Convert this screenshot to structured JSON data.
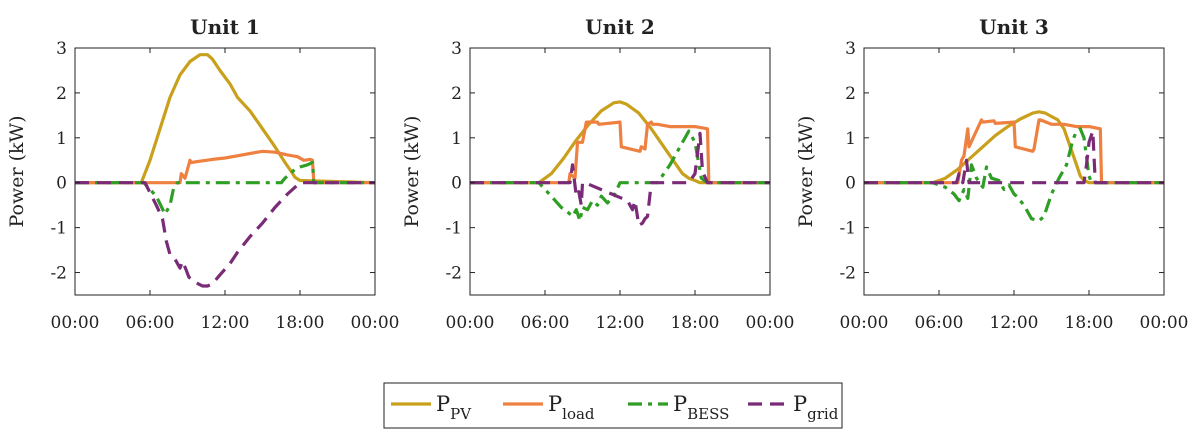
{
  "chart_data": [
    {
      "type": "line",
      "title": "Unit 1",
      "xlabel": "",
      "ylabel": "Power (kW)",
      "x_ticks": [
        "00:00",
        "06:00",
        "12:00",
        "18:00",
        "00:00"
      ],
      "y_ticks": [
        "3",
        "2",
        "1",
        "0",
        "-1",
        "-2"
      ],
      "xlim": [
        0,
        24
      ],
      "ylim": [
        -2.5,
        3
      ],
      "series": [
        {
          "key": "pv",
          "x": [
            0,
            5.3,
            6.0,
            6.8,
            7.6,
            8.4,
            9.2,
            10.0,
            10.6,
            11.0,
            11.6,
            12.4,
            13.0,
            14.0,
            15.0,
            16.0,
            16.8,
            17.3,
            17.6,
            18.0,
            24
          ],
          "values": [
            0,
            0,
            0.5,
            1.2,
            1.9,
            2.4,
            2.7,
            2.85,
            2.85,
            2.75,
            2.5,
            2.2,
            1.9,
            1.6,
            1.2,
            0.8,
            0.45,
            0.25,
            0.12,
            0.05,
            0
          ]
        },
        {
          "key": "load",
          "x": [
            0,
            8.4,
            8.5,
            8.8,
            9.0,
            9.2,
            9.3,
            10,
            11,
            12,
            13,
            14,
            15,
            16,
            17,
            17.8,
            18.3,
            18.8,
            19.0,
            19.1,
            24
          ],
          "values": [
            0,
            0,
            0.2,
            0.1,
            0.3,
            0.5,
            0.45,
            0.48,
            0.52,
            0.55,
            0.6,
            0.65,
            0.7,
            0.68,
            0.62,
            0.58,
            0.5,
            0.52,
            0.5,
            0,
            0
          ]
        },
        {
          "key": "bess",
          "x": [
            0,
            5.5,
            6.5,
            7.2,
            7.6,
            7.9,
            8.2,
            16.5,
            16.8,
            17.2,
            17.6,
            18.0,
            18.6,
            19.0,
            19.1,
            24
          ],
          "values": [
            0,
            0,
            -0.3,
            -0.7,
            -0.5,
            -0.1,
            0,
            0,
            0.1,
            0.2,
            0.3,
            0.35,
            0.4,
            0.45,
            0,
            0
          ]
        },
        {
          "key": "grid",
          "x": [
            0,
            5.6,
            6.5,
            7.0,
            7.3,
            7.6,
            8.0,
            8.4,
            8.6,
            8.9,
            9.1,
            9.5,
            10.2,
            10.6,
            11.0,
            11.6,
            12.4,
            13.0,
            14.0,
            15.0,
            16.0,
            17.0,
            18.0,
            24
          ],
          "values": [
            0,
            0,
            -0.5,
            -0.8,
            -1.3,
            -1.6,
            -1.7,
            -1.9,
            -1.75,
            -1.95,
            -2.1,
            -2.2,
            -2.3,
            -2.3,
            -2.25,
            -2.05,
            -1.8,
            -1.55,
            -1.2,
            -0.9,
            -0.55,
            -0.25,
            0,
            0
          ]
        }
      ]
    },
    {
      "type": "line",
      "title": "Unit 2",
      "xlabel": "",
      "ylabel": "Power (kW)",
      "x_ticks": [
        "00:00",
        "06:00",
        "12:00",
        "18:00",
        "00:00"
      ],
      "y_ticks": [
        "3",
        "2",
        "1",
        "0",
        "-1",
        "-2"
      ],
      "xlim": [
        0,
        24
      ],
      "ylim": [
        -2.5,
        3
      ],
      "series": [
        {
          "key": "pv",
          "x": [
            0,
            5.5,
            6.5,
            7.5,
            8.5,
            9.5,
            10.5,
            11.5,
            12.0,
            12.5,
            13.5,
            14.5,
            15.5,
            16.5,
            17.0,
            17.5,
            18.0,
            18.4,
            24
          ],
          "values": [
            0,
            0,
            0.2,
            0.55,
            0.95,
            1.3,
            1.6,
            1.78,
            1.8,
            1.75,
            1.55,
            1.2,
            0.8,
            0.4,
            0.2,
            0.1,
            0.05,
            0,
            0
          ]
        },
        {
          "key": "load",
          "x": [
            0,
            7.9,
            8.0,
            8.4,
            8.6,
            9.0,
            9.3,
            10.2,
            10.3,
            12.0,
            12.1,
            13.6,
            13.7,
            14.0,
            14.2,
            14.5,
            14.6,
            15.0,
            16.0,
            17.0,
            18.0,
            19.0,
            19.1,
            24
          ],
          "values": [
            0,
            0,
            0.2,
            0.1,
            0.9,
            0.9,
            1.35,
            1.35,
            1.3,
            1.35,
            0.8,
            0.7,
            0.8,
            0.75,
            1.3,
            1.35,
            1.3,
            1.3,
            1.25,
            1.25,
            1.25,
            1.2,
            0,
            0
          ]
        },
        {
          "key": "bess",
          "x": [
            0,
            5.5,
            6.5,
            7.3,
            7.8,
            8.2,
            8.5,
            8.8,
            9.0,
            9.4,
            9.8,
            10.2,
            10.5,
            11.0,
            11.5,
            12.0,
            12.4,
            13.5,
            14.5,
            15.0,
            16.0,
            16.8,
            17.5,
            18.0,
            18.5,
            19.0,
            24
          ],
          "values": [
            0,
            0,
            -0.3,
            -0.55,
            -0.65,
            -0.75,
            -0.6,
            -0.85,
            -0.55,
            -0.6,
            -0.4,
            -0.5,
            -0.3,
            -0.45,
            -0.3,
            0,
            0,
            0,
            0,
            0,
            0.4,
            0.8,
            1.15,
            0.9,
            0.1,
            0,
            0
          ]
        },
        {
          "key": "grid",
          "x": [
            0,
            7.9,
            8.0,
            8.2,
            8.5,
            8.7,
            8.9,
            9.0,
            9.2,
            12.6,
            13.0,
            13.2,
            13.5,
            13.8,
            14.0,
            14.2,
            14.5,
            15.0,
            17.5,
            18.0,
            18.4,
            18.6,
            19.0,
            24
          ],
          "values": [
            0,
            0,
            0,
            0.4,
            -0.3,
            -0.2,
            -0.5,
            0,
            0,
            -0.4,
            -0.6,
            -0.4,
            -0.95,
            -0.9,
            -0.8,
            -0.75,
            0,
            0,
            0,
            0.2,
            1.1,
            0.25,
            0,
            0
          ]
        }
      ]
    },
    {
      "type": "line",
      "title": "Unit 3",
      "xlabel": "",
      "ylabel": "Power (kW)",
      "x_ticks": [
        "00:00",
        "06:00",
        "12:00",
        "18:00",
        "00:00"
      ],
      "y_ticks": [
        "3",
        "2",
        "1",
        "0",
        "-1",
        "-2"
      ],
      "xlim": [
        0,
        24
      ],
      "ylim": [
        -2.5,
        3
      ],
      "series": [
        {
          "key": "pv",
          "x": [
            0,
            5.5,
            6.5,
            7.5,
            8.5,
            9.5,
            10.5,
            11.5,
            12.5,
            13.5,
            14.0,
            14.5,
            15.5,
            16.0,
            16.5,
            17.0,
            17.3,
            17.6,
            18.0,
            24
          ],
          "values": [
            0,
            0,
            0.1,
            0.3,
            0.55,
            0.8,
            1.05,
            1.25,
            1.42,
            1.55,
            1.58,
            1.55,
            1.4,
            1.2,
            0.8,
            0.4,
            0.15,
            0.05,
            0,
            0
          ]
        },
        {
          "key": "load",
          "x": [
            0,
            7.5,
            7.8,
            8.0,
            8.3,
            8.4,
            9.4,
            9.5,
            10.4,
            10.5,
            12.0,
            12.1,
            13.5,
            13.6,
            14.0,
            14.1,
            15.0,
            16.0,
            17.0,
            18.0,
            18.9,
            19.0,
            24
          ],
          "values": [
            0,
            0,
            0.5,
            0.6,
            1.2,
            0.8,
            1.4,
            1.35,
            1.38,
            1.32,
            1.35,
            0.8,
            0.7,
            0.75,
            1.4,
            1.4,
            1.3,
            1.3,
            1.25,
            1.25,
            1.2,
            0,
            0
          ]
        },
        {
          "key": "bess",
          "x": [
            0,
            5.5,
            6.5,
            7.2,
            7.6,
            8.0,
            8.3,
            8.6,
            9.0,
            9.5,
            9.8,
            10.2,
            10.8,
            11.2,
            11.6,
            12.0,
            12.2,
            12.8,
            13.4,
            14.0,
            14.4,
            15.0,
            15.6,
            16.2,
            16.7,
            17.0,
            17.3,
            17.6,
            18.0,
            18.2,
            24
          ],
          "values": [
            0,
            0,
            -0.1,
            -0.25,
            -0.4,
            -0.15,
            -0.35,
            0.4,
            0.1,
            -0.1,
            0.35,
            0.1,
            0.05,
            -0.15,
            -0.05,
            -0.25,
            -0.3,
            -0.5,
            -0.8,
            -0.85,
            -0.75,
            -0.25,
            0.1,
            0.4,
            0.95,
            1.15,
            1.2,
            1.0,
            0.15,
            0,
            0
          ]
        },
        {
          "key": "grid",
          "x": [
            0,
            7.4,
            7.6,
            7.9,
            8.2,
            8.4,
            8.6,
            17.6,
            17.8,
            18.0,
            18.3,
            18.5,
            24
          ],
          "values": [
            0,
            0,
            0.2,
            0,
            0.5,
            0,
            0,
            0,
            0.4,
            0.9,
            1.15,
            0,
            0
          ]
        }
      ]
    }
  ],
  "legend": [
    {
      "key": "pv",
      "main": "P",
      "sub": "PV",
      "color": "#c9a01c",
      "dash": "solid"
    },
    {
      "key": "load",
      "main": "P",
      "sub": "load",
      "color": "#ee8040",
      "dash": "solid"
    },
    {
      "key": "bess",
      "main": "P",
      "sub": "BESS",
      "color": "#2e9e24",
      "dash": "dashdot"
    },
    {
      "key": "grid",
      "main": "P",
      "sub": "grid",
      "color": "#7a2b78",
      "dash": "dashed"
    }
  ]
}
